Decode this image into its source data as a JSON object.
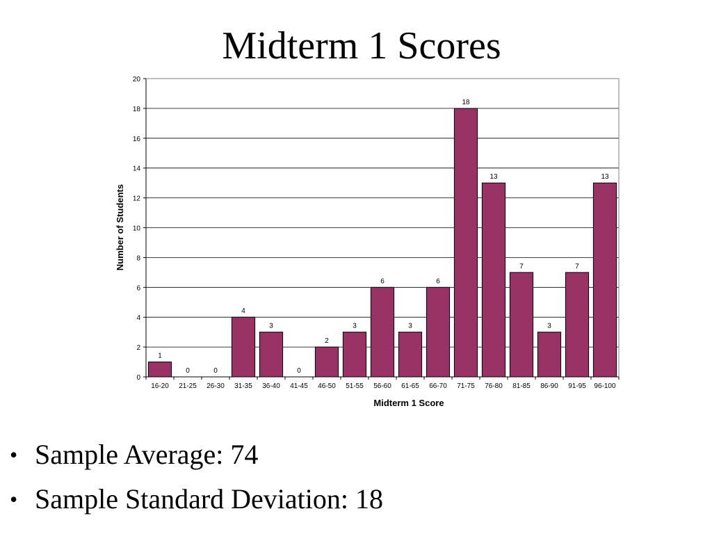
{
  "slide": {
    "title": "Midterm 1 Scores",
    "bullets": [
      {
        "marker": "•",
        "text": "Sample Average: 74"
      },
      {
        "marker": "•",
        "text": "Sample Standard Deviation: 18"
      }
    ]
  },
  "colors": {
    "bar_fill": "#993366",
    "bar_stroke": "#000000",
    "gridline": "#000000",
    "plot_border": "#808080"
  },
  "chart_data": {
    "type": "bar",
    "title": "",
    "xlabel": "Midterm 1 Score",
    "ylabel": "Number of Students",
    "categories": [
      "16-20",
      "21-25",
      "26-30",
      "31-35",
      "36-40",
      "41-45",
      "46-50",
      "51-55",
      "56-60",
      "61-65",
      "66-70",
      "71-75",
      "76-80",
      "81-85",
      "86-90",
      "91-95",
      "96-100"
    ],
    "values": [
      1,
      0,
      0,
      4,
      3,
      0,
      2,
      3,
      6,
      3,
      6,
      18,
      13,
      7,
      3,
      7,
      13
    ],
    "ylim": [
      0,
      20
    ],
    "yticks": [
      0,
      2,
      4,
      6,
      8,
      10,
      12,
      14,
      16,
      18,
      20
    ],
    "grid": true,
    "data_labels": true,
    "legend": "none"
  }
}
